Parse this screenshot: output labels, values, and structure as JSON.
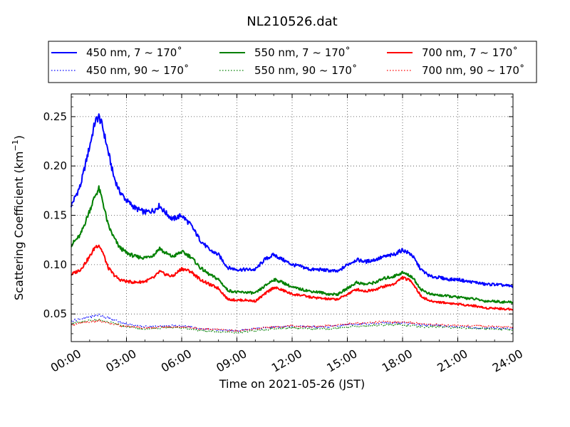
{
  "chart_data": {
    "type": "line",
    "title": "NL210526.dat",
    "xlabel": "Time on 2021-05-26 (JST)",
    "ylabel_main": "Scattering Coefficient (km",
    "ylabel_sup": "−1",
    "ylabel_end": ")",
    "xlim": [
      0,
      24
    ],
    "ylim": [
      0.022,
      0.273
    ],
    "x_ticks": [
      {
        "value": 0,
        "label": "00:00"
      },
      {
        "value": 3,
        "label": "03:00"
      },
      {
        "value": 6,
        "label": "06:00"
      },
      {
        "value": 9,
        "label": "09:00"
      },
      {
        "value": 12,
        "label": "12:00"
      },
      {
        "value": 15,
        "label": "15:00"
      },
      {
        "value": 18,
        "label": "18:00"
      },
      {
        "value": 21,
        "label": "21:00"
      },
      {
        "value": 24,
        "label": "24:00"
      }
    ],
    "y_ticks": [
      {
        "value": 0.05,
        "label": "0.05"
      },
      {
        "value": 0.1,
        "label": "0.10"
      },
      {
        "value": 0.15,
        "label": "0.15"
      },
      {
        "value": 0.2,
        "label": "0.20"
      },
      {
        "value": 0.25,
        "label": "0.25"
      }
    ],
    "grid": true,
    "grid_style": "dotted",
    "legend_position": "top, above plot",
    "legend_columns": 3,
    "series": [
      {
        "name": "450 nm, 7 ~ 170˚",
        "color": "#0000ff",
        "style": "solid",
        "x": [
          0,
          0.5,
          1,
          1.3,
          1.5,
          1.7,
          2,
          2.3,
          2.6,
          3,
          3.5,
          4,
          4.5,
          4.8,
          5,
          5.5,
          6,
          6.5,
          7,
          7.5,
          8,
          8.5,
          9,
          9.5,
          10,
          10.5,
          11,
          11.5,
          12,
          12.5,
          13,
          13.5,
          14,
          14.5,
          15,
          15.5,
          16,
          16.5,
          17,
          17.5,
          18,
          18.5,
          19,
          19.5,
          20,
          20.5,
          21,
          21.5,
          22,
          22.5,
          23,
          23.5,
          24
        ],
        "y": [
          0.16,
          0.18,
          0.22,
          0.245,
          0.25,
          0.24,
          0.215,
          0.19,
          0.175,
          0.165,
          0.157,
          0.153,
          0.155,
          0.16,
          0.155,
          0.146,
          0.15,
          0.14,
          0.125,
          0.115,
          0.11,
          0.097,
          0.095,
          0.095,
          0.095,
          0.105,
          0.11,
          0.105,
          0.1,
          0.098,
          0.095,
          0.095,
          0.094,
          0.093,
          0.1,
          0.105,
          0.103,
          0.105,
          0.108,
          0.11,
          0.115,
          0.11,
          0.095,
          0.088,
          0.087,
          0.085,
          0.085,
          0.083,
          0.082,
          0.08,
          0.08,
          0.079,
          0.078
        ]
      },
      {
        "name": "550 nm, 7 ~ 170˚",
        "color": "#008000",
        "style": "solid",
        "x": [
          0,
          0.5,
          1,
          1.3,
          1.5,
          1.7,
          2,
          2.3,
          2.6,
          3,
          3.5,
          4,
          4.5,
          4.8,
          5,
          5.5,
          6,
          6.5,
          7,
          7.5,
          8,
          8.5,
          9,
          9.5,
          10,
          10.5,
          11,
          11.5,
          12,
          12.5,
          13,
          13.5,
          14,
          14.5,
          15,
          15.5,
          16,
          16.5,
          17,
          17.5,
          18,
          18.5,
          19,
          19.5,
          20,
          20.5,
          21,
          21.5,
          22,
          22.5,
          23,
          23.5,
          24
        ],
        "y": [
          0.12,
          0.13,
          0.155,
          0.17,
          0.177,
          0.165,
          0.14,
          0.128,
          0.118,
          0.112,
          0.108,
          0.107,
          0.11,
          0.117,
          0.113,
          0.108,
          0.113,
          0.108,
          0.097,
          0.09,
          0.085,
          0.074,
          0.072,
          0.072,
          0.071,
          0.078,
          0.085,
          0.082,
          0.077,
          0.075,
          0.073,
          0.072,
          0.07,
          0.07,
          0.076,
          0.082,
          0.08,
          0.082,
          0.086,
          0.088,
          0.092,
          0.088,
          0.075,
          0.07,
          0.069,
          0.068,
          0.067,
          0.066,
          0.065,
          0.063,
          0.063,
          0.062,
          0.062
        ]
      },
      {
        "name": "700 nm, 7 ~ 170˚",
        "color": "#ff0000",
        "style": "solid",
        "x": [
          0,
          0.5,
          1,
          1.3,
          1.5,
          1.7,
          2,
          2.3,
          2.6,
          3,
          3.5,
          4,
          4.5,
          4.8,
          5,
          5.5,
          6,
          6.5,
          7,
          7.5,
          8,
          8.5,
          9,
          9.5,
          10,
          10.5,
          11,
          11.5,
          12,
          12.5,
          13,
          13.5,
          14,
          14.5,
          15,
          15.5,
          16,
          16.5,
          17,
          17.5,
          18,
          18.5,
          19,
          19.5,
          20,
          20.5,
          21,
          21.5,
          22,
          22.5,
          23,
          23.5,
          24
        ],
        "y": [
          0.09,
          0.095,
          0.108,
          0.118,
          0.12,
          0.113,
          0.097,
          0.09,
          0.085,
          0.083,
          0.082,
          0.083,
          0.087,
          0.093,
          0.091,
          0.088,
          0.096,
          0.093,
          0.085,
          0.08,
          0.076,
          0.065,
          0.064,
          0.064,
          0.063,
          0.07,
          0.077,
          0.074,
          0.07,
          0.069,
          0.067,
          0.066,
          0.065,
          0.065,
          0.07,
          0.075,
          0.073,
          0.075,
          0.078,
          0.08,
          0.087,
          0.083,
          0.068,
          0.063,
          0.062,
          0.061,
          0.06,
          0.059,
          0.058,
          0.056,
          0.056,
          0.055,
          0.055
        ]
      },
      {
        "name": "450 nm, 90 ~ 170˚",
        "color": "#0000ff",
        "style": "dotted",
        "x": [
          0,
          1,
          1.5,
          2,
          3,
          4,
          5,
          6,
          7,
          8,
          9,
          10,
          11,
          12,
          13,
          14,
          15,
          16,
          17,
          18,
          19,
          20,
          21,
          22,
          23,
          24
        ],
        "y": [
          0.043,
          0.047,
          0.049,
          0.046,
          0.04,
          0.037,
          0.038,
          0.038,
          0.035,
          0.034,
          0.033,
          0.035,
          0.037,
          0.038,
          0.037,
          0.037,
          0.039,
          0.04,
          0.041,
          0.041,
          0.039,
          0.038,
          0.037,
          0.036,
          0.036,
          0.035
        ]
      },
      {
        "name": "550 nm, 90 ~ 170˚",
        "color": "#008000",
        "style": "dotted",
        "x": [
          0,
          1,
          1.5,
          2,
          3,
          4,
          5,
          6,
          7,
          8,
          9,
          10,
          11,
          12,
          13,
          14,
          15,
          16,
          17,
          18,
          19,
          20,
          21,
          22,
          23,
          24
        ],
        "y": [
          0.04,
          0.043,
          0.044,
          0.042,
          0.037,
          0.035,
          0.036,
          0.036,
          0.033,
          0.032,
          0.031,
          0.033,
          0.035,
          0.036,
          0.035,
          0.035,
          0.037,
          0.038,
          0.039,
          0.039,
          0.037,
          0.037,
          0.036,
          0.035,
          0.035,
          0.034
        ]
      },
      {
        "name": "700 nm, 90 ~ 170˚",
        "color": "#ff0000",
        "style": "dotted",
        "x": [
          0,
          1,
          1.5,
          2,
          3,
          4,
          5,
          6,
          7,
          8,
          9,
          10,
          11,
          12,
          13,
          14,
          15,
          16,
          17,
          18,
          19,
          20,
          21,
          22,
          23,
          24
        ],
        "y": [
          0.039,
          0.042,
          0.043,
          0.041,
          0.037,
          0.036,
          0.037,
          0.037,
          0.035,
          0.034,
          0.033,
          0.035,
          0.037,
          0.038,
          0.037,
          0.038,
          0.04,
          0.041,
          0.042,
          0.042,
          0.04,
          0.039,
          0.038,
          0.038,
          0.037,
          0.037
        ]
      }
    ]
  }
}
